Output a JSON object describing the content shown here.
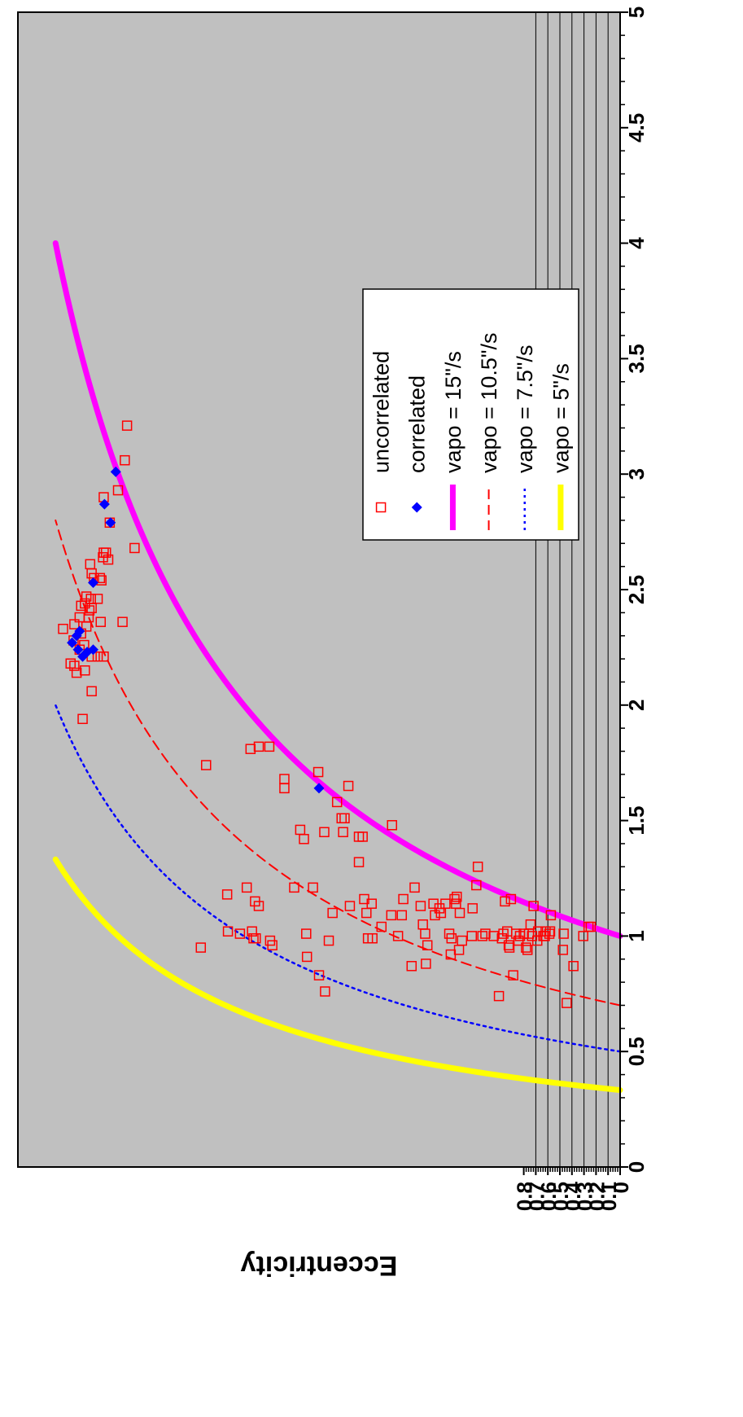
{
  "chart_data": {
    "type": "scatter",
    "title": "",
    "xlabel": "Eccentricity",
    "ylabel": "",
    "xlim": [
      0,
      0.8
    ],
    "ylim": [
      0,
      5
    ],
    "x_ticks": [
      "0",
      "0.1",
      "0.2",
      "0.3",
      "0.4",
      "0.5",
      "0.6",
      "0.7",
      "0.8"
    ],
    "y_ticks": [
      "0",
      "0.5",
      "1",
      "1.5",
      "2",
      "2.5",
      "3",
      "3.5",
      "4",
      "4.5",
      "5"
    ],
    "grid": "horizontal lines at each 0.1 eccentricity tick",
    "legend_position": "right-center",
    "background_color": "#c0c0c0",
    "series": [
      {
        "name": "uncorrelated",
        "kind": "points",
        "marker": "open-square",
        "color": "#ff0000",
        "points": [
          [
            0.557,
            0.95
          ],
          [
            0.55,
            1.74
          ],
          [
            0.522,
            1.18
          ],
          [
            0.521,
            1.02
          ],
          [
            0.505,
            1.01
          ],
          [
            0.496,
            1.21
          ],
          [
            0.491,
            1.81
          ],
          [
            0.489,
            1.02
          ],
          [
            0.487,
            0.99
          ],
          [
            0.485,
            1.15
          ],
          [
            0.484,
            0.99
          ],
          [
            0.48,
            1.82
          ],
          [
            0.48,
            1.13
          ],
          [
            0.466,
            1.82
          ],
          [
            0.465,
            0.98
          ],
          [
            0.462,
            0.96
          ],
          [
            0.446,
            1.64
          ],
          [
            0.446,
            1.68
          ],
          [
            0.433,
            1.21
          ],
          [
            0.425,
            1.46
          ],
          [
            0.42,
            1.42
          ],
          [
            0.417,
            1.01
          ],
          [
            0.416,
            0.91
          ],
          [
            0.408,
            1.21
          ],
          [
            0.401,
            1.71
          ],
          [
            0.4,
            0.83
          ],
          [
            0.393,
            1.45
          ],
          [
            0.392,
            0.76
          ],
          [
            0.387,
            0.98
          ],
          [
            0.382,
            1.1
          ],
          [
            0.361,
            1.65
          ],
          [
            0.376,
            1.58
          ],
          [
            0.37,
            1.51
          ],
          [
            0.366,
            1.51
          ],
          [
            0.368,
            1.45
          ],
          [
            0.359,
            1.13
          ],
          [
            0.347,
            1.32
          ],
          [
            0.347,
            1.43
          ],
          [
            0.342,
            1.43
          ],
          [
            0.34,
            1.16
          ],
          [
            0.337,
            1.1
          ],
          [
            0.335,
            0.99
          ],
          [
            0.33,
            1.14
          ],
          [
            0.329,
            0.99
          ],
          [
            0.317,
            1.04
          ],
          [
            0.304,
            1.09
          ],
          [
            0.303,
            1.48
          ],
          [
            0.295,
            1.0
          ],
          [
            0.29,
            1.09
          ],
          [
            0.288,
            1.16
          ],
          [
            0.277,
            0.87
          ],
          [
            0.273,
            1.21
          ],
          [
            0.265,
            1.13
          ],
          [
            0.262,
            1.05
          ],
          [
            0.259,
            1.01
          ],
          [
            0.258,
            0.88
          ],
          [
            0.256,
            0.96
          ],
          [
            0.248,
            1.14
          ],
          [
            0.246,
            1.09
          ],
          [
            0.24,
            1.12
          ],
          [
            0.238,
            1.1
          ],
          [
            0.232,
            1.14
          ],
          [
            0.227,
            1.01
          ],
          [
            0.225,
            0.92
          ],
          [
            0.224,
            0.99
          ],
          [
            0.22,
            1.16
          ],
          [
            0.218,
            1.14
          ],
          [
            0.217,
            1.17
          ],
          [
            0.214,
            0.94
          ],
          [
            0.213,
            1.1
          ],
          [
            0.21,
            0.98
          ],
          [
            0.197,
            1.0
          ],
          [
            0.196,
            1.12
          ],
          [
            0.191,
            1.22
          ],
          [
            0.189,
            1.3
          ],
          [
            0.183,
            1.0
          ],
          [
            0.179,
            1.01
          ],
          [
            0.168,
            1.0
          ],
          [
            0.161,
            0.74
          ],
          [
            0.157,
            0.99
          ],
          [
            0.155,
            1.01
          ],
          [
            0.153,
            1.15
          ],
          [
            0.15,
            1.02
          ],
          [
            0.148,
            0.96
          ],
          [
            0.147,
            0.95
          ],
          [
            0.145,
            1.16
          ],
          [
            0.142,
            0.83
          ],
          [
            0.138,
            1.01
          ],
          [
            0.135,
            0.98
          ],
          [
            0.133,
            1.0
          ],
          [
            0.128,
            1.01
          ],
          [
            0.125,
            0.95
          ],
          [
            0.123,
            0.94
          ],
          [
            0.121,
            1.01
          ],
          [
            0.119,
            1.05
          ],
          [
            0.117,
            1.0
          ],
          [
            0.115,
            1.13
          ],
          [
            0.11,
            0.98
          ],
          [
            0.109,
            1.02
          ],
          [
            0.102,
            1.0
          ],
          [
            0.1,
            1.0
          ],
          [
            0.099,
            1.02
          ],
          [
            0.094,
            1.01
          ],
          [
            0.093,
            1.02
          ],
          [
            0.092,
            1.09
          ],
          [
            0.075,
            1.01
          ],
          [
            0.076,
            0.94
          ],
          [
            0.071,
            0.71
          ],
          [
            0.062,
            0.87
          ],
          [
            0.049,
            1.0
          ],
          [
            0.042,
            1.04
          ],
          [
            0.039,
            1.04
          ],
          [
            0.714,
            1.94
          ],
          [
            0.702,
            2.06
          ],
          [
            0.711,
            2.15
          ],
          [
            0.722,
            2.14
          ],
          [
            0.725,
            2.17
          ],
          [
            0.73,
            2.18
          ],
          [
            0.702,
            2.21
          ],
          [
            0.694,
            2.21
          ],
          [
            0.686,
            2.21
          ],
          [
            0.718,
            2.24
          ],
          [
            0.712,
            2.26
          ],
          [
            0.726,
            2.28
          ],
          [
            0.716,
            2.31
          ],
          [
            0.74,
            2.33
          ],
          [
            0.725,
            2.35
          ],
          [
            0.709,
            2.34
          ],
          [
            0.718,
            2.38
          ],
          [
            0.706,
            2.38
          ],
          [
            0.69,
            2.36
          ],
          [
            0.661,
            2.36
          ],
          [
            0.705,
            2.41
          ],
          [
            0.711,
            2.44
          ],
          [
            0.702,
            2.42
          ],
          [
            0.716,
            2.43
          ],
          [
            0.703,
            2.46
          ],
          [
            0.694,
            2.46
          ],
          [
            0.709,
            2.47
          ],
          [
            0.699,
            2.55
          ],
          [
            0.691,
            2.55
          ],
          [
            0.702,
            2.57
          ],
          [
            0.689,
            2.54
          ],
          [
            0.704,
            2.61
          ],
          [
            0.687,
            2.64
          ],
          [
            0.68,
            2.63
          ],
          [
            0.683,
            2.66
          ],
          [
            0.686,
            2.66
          ],
          [
            0.645,
            2.68
          ],
          [
            0.678,
            2.79
          ],
          [
            0.686,
            2.9
          ],
          [
            0.667,
            2.93
          ],
          [
            0.658,
            3.06
          ],
          [
            0.655,
            3.21
          ]
        ]
      },
      {
        "name": "correlated",
        "kind": "points",
        "marker": "filled-diamond",
        "color": "#0000ff",
        "points": [
          [
            0.4,
            1.64
          ],
          [
            0.714,
            2.21
          ],
          [
            0.708,
            2.23
          ],
          [
            0.7,
            2.24
          ],
          [
            0.72,
            2.24
          ],
          [
            0.728,
            2.27
          ],
          [
            0.722,
            2.3
          ],
          [
            0.718,
            2.32
          ],
          [
            0.7,
            2.53
          ],
          [
            0.677,
            2.79
          ],
          [
            0.685,
            2.87
          ],
          [
            0.67,
            3.01
          ]
        ]
      },
      {
        "name": "vapo = 15\"/s",
        "kind": "line",
        "color": "#ff00ff",
        "style": "solid-thick",
        "scale": 1.0,
        "e_max": 0.75
      },
      {
        "name": "vapo = 10.5\"/s",
        "kind": "line",
        "color": "#ff0000",
        "style": "dashed",
        "scale": 0.7,
        "e_max": 0.75
      },
      {
        "name": "vapo = 7.5\"/s",
        "kind": "line",
        "color": "#0000ff",
        "style": "dotted",
        "scale": 0.5,
        "e_max": 0.75
      },
      {
        "name": "vapo = 5\"/s",
        "kind": "line",
        "color": "#ffff00",
        "style": "solid-thick",
        "scale": 0.333,
        "e_max": 0.75
      }
    ]
  }
}
